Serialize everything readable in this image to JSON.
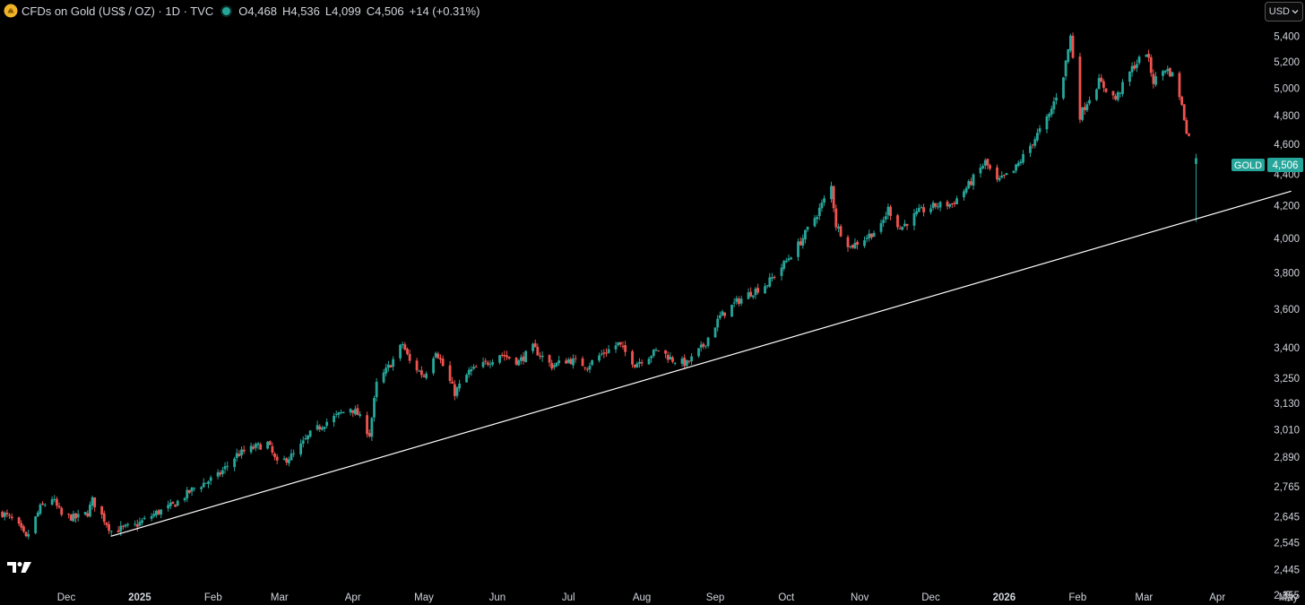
{
  "header": {
    "title": "CFDs on Gold (US$ / OZ) · 1D · TVC",
    "ohlc": [
      {
        "key": "O",
        "value": "4,468"
      },
      {
        "key": "H",
        "value": "4,536"
      },
      {
        "key": "L",
        "value": "4,099"
      },
      {
        "key": "C",
        "value": "4,506"
      }
    ],
    "change": "+14 (+0.31%)"
  },
  "currency": {
    "label": "USD",
    "icon": "chevron-down-icon"
  },
  "price_label": {
    "symbol": "GOLD",
    "value": "4,506",
    "color": "#26a69a"
  },
  "icons": {
    "symbol": "gold-coin-icon",
    "logo": "tradingview-logo-icon",
    "settings": "gear-icon"
  },
  "colors": {
    "up": "#26a69a",
    "down": "#ef5350",
    "background": "#000000",
    "trendline": "#ffffff"
  },
  "chart_data": {
    "type": "candlestick",
    "y_axis_scale": "log",
    "ylim": [
      2320,
      5700
    ],
    "xlim": [
      "2024-11-03",
      "2026-05-08"
    ],
    "y_ticks": [
      "5,400",
      "5,200",
      "5,000",
      "4,800",
      "4,600",
      "4,400",
      "4,200",
      "4,000",
      "3,800",
      "3,600",
      "3,400",
      "3,250",
      "3,130",
      "3,010",
      "2,890",
      "2,765",
      "2,645",
      "2,545",
      "2,445",
      "2,355"
    ],
    "x_ticks": [
      {
        "label": "Dec",
        "date": "2024-12-01",
        "bold": false
      },
      {
        "label": "2025",
        "date": "2025-01-01",
        "bold": true
      },
      {
        "label": "Feb",
        "date": "2025-02-01",
        "bold": false
      },
      {
        "label": "Mar",
        "date": "2025-03-01",
        "bold": false
      },
      {
        "label": "Apr",
        "date": "2025-04-01",
        "bold": false
      },
      {
        "label": "May",
        "date": "2025-05-01",
        "bold": false
      },
      {
        "label": "Jun",
        "date": "2025-06-01",
        "bold": false
      },
      {
        "label": "Jul",
        "date": "2025-07-01",
        "bold": false
      },
      {
        "label": "Aug",
        "date": "2025-08-01",
        "bold": false
      },
      {
        "label": "Sep",
        "date": "2025-09-01",
        "bold": false
      },
      {
        "label": "Oct",
        "date": "2025-10-01",
        "bold": false
      },
      {
        "label": "Nov",
        "date": "2025-11-01",
        "bold": false
      },
      {
        "label": "Dec",
        "date": "2025-12-01",
        "bold": false
      },
      {
        "label": "2026",
        "date": "2026-01-01",
        "bold": true
      },
      {
        "label": "Feb",
        "date": "2026-02-01",
        "bold": false
      },
      {
        "label": "Mar",
        "date": "2026-03-01",
        "bold": false
      },
      {
        "label": "Apr",
        "date": "2026-04-01",
        "bold": false
      },
      {
        "label": "May",
        "date": "2026-05-01",
        "bold": false
      }
    ],
    "price_path": [
      [
        "2024-11-04",
        2660
      ],
      [
        "2024-11-10",
        2620
      ],
      [
        "2024-11-14",
        2560
      ],
      [
        "2024-11-20",
        2680
      ],
      [
        "2024-11-25",
        2720
      ],
      [
        "2024-11-29",
        2650
      ],
      [
        "2024-12-05",
        2640
      ],
      [
        "2024-12-10",
        2660
      ],
      [
        "2024-12-12",
        2710
      ],
      [
        "2024-12-18",
        2620
      ],
      [
        "2024-12-20",
        2590
      ],
      [
        "2024-12-30",
        2610
      ],
      [
        "2025-01-08",
        2660
      ],
      [
        "2025-01-15",
        2690
      ],
      [
        "2025-01-24",
        2760
      ],
      [
        "2025-02-03",
        2810
      ],
      [
        "2025-02-11",
        2900
      ],
      [
        "2025-02-18",
        2930
      ],
      [
        "2025-02-24",
        2950
      ],
      [
        "2025-02-28",
        2860
      ],
      [
        "2025-03-07",
        2900
      ],
      [
        "2025-03-14",
        2990
      ],
      [
        "2025-03-20",
        3040
      ],
      [
        "2025-03-31",
        3110
      ],
      [
        "2025-04-03",
        3080
      ],
      [
        "2025-04-08",
        2990
      ],
      [
        "2025-04-11",
        3220
      ],
      [
        "2025-04-17",
        3320
      ],
      [
        "2025-04-22",
        3420
      ],
      [
        "2025-04-25",
        3330
      ],
      [
        "2025-05-01",
        3260
      ],
      [
        "2025-05-06",
        3390
      ],
      [
        "2025-05-14",
        3180
      ],
      [
        "2025-05-20",
        3280
      ],
      [
        "2025-05-27",
        3320
      ],
      [
        "2025-06-02",
        3370
      ],
      [
        "2025-06-10",
        3330
      ],
      [
        "2025-06-16",
        3400
      ],
      [
        "2025-06-24",
        3310
      ],
      [
        "2025-07-01",
        3340
      ],
      [
        "2025-07-09",
        3310
      ],
      [
        "2025-07-14",
        3360
      ],
      [
        "2025-07-22",
        3420
      ],
      [
        "2025-07-29",
        3320
      ],
      [
        "2025-08-04",
        3360
      ],
      [
        "2025-08-08",
        3390
      ],
      [
        "2025-08-14",
        3340
      ],
      [
        "2025-08-20",
        3320
      ],
      [
        "2025-08-27",
        3410
      ],
      [
        "2025-09-03",
        3560
      ],
      [
        "2025-09-10",
        3640
      ],
      [
        "2025-09-16",
        3690
      ],
      [
        "2025-09-23",
        3740
      ],
      [
        "2025-09-30",
        3850
      ],
      [
        "2025-10-07",
        3980
      ],
      [
        "2025-10-14",
        4150
      ],
      [
        "2025-10-20",
        4320
      ],
      [
        "2025-10-22",
        4080
      ],
      [
        "2025-10-28",
        3950
      ],
      [
        "2025-11-03",
        4000
      ],
      [
        "2025-11-10",
        4070
      ],
      [
        "2025-11-13",
        4180
      ],
      [
        "2025-11-18",
        4060
      ],
      [
        "2025-11-26",
        4160
      ],
      [
        "2025-12-03",
        4200
      ],
      [
        "2025-12-10",
        4210
      ],
      [
        "2025-12-16",
        4310
      ],
      [
        "2025-12-24",
        4480
      ],
      [
        "2025-12-29",
        4350
      ],
      [
        "2026-01-05",
        4420
      ],
      [
        "2026-01-12",
        4590
      ],
      [
        "2026-01-20",
        4800
      ],
      [
        "2026-01-26",
        5100
      ],
      [
        "2026-01-29",
        5400
      ],
      [
        "2026-02-02",
        4800
      ],
      [
        "2026-02-05",
        4900
      ],
      [
        "2026-02-10",
        5050
      ],
      [
        "2026-02-17",
        4920
      ],
      [
        "2026-02-24",
        5150
      ],
      [
        "2026-03-02",
        5280
      ],
      [
        "2026-03-05",
        5050
      ],
      [
        "2026-03-10",
        5150
      ],
      [
        "2026-03-13",
        5100
      ],
      [
        "2026-03-16",
        4950
      ],
      [
        "2026-03-19",
        4700
      ],
      [
        "2026-03-23",
        4506
      ]
    ],
    "trendline": {
      "start": [
        "2024-12-20",
        2570
      ],
      "end": [
        "2026-05-02",
        4290
      ],
      "color": "#ffffff"
    }
  }
}
